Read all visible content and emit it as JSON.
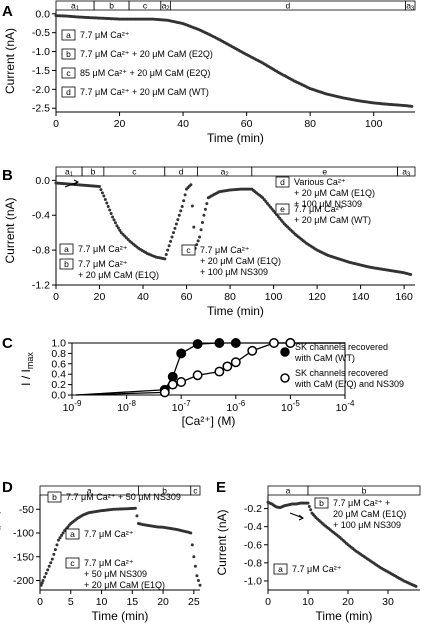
{
  "chart_data": [
    {
      "panel": "A",
      "type": "scatter",
      "xlabel": "Time (min)",
      "ylabel": "Current (nA)",
      "xlim": [
        0,
        113
      ],
      "ylim": [
        -2.6,
        0.1
      ],
      "xticks": [
        "0",
        "20",
        "40",
        "60",
        "80",
        "100"
      ],
      "yticks": [
        "0.0",
        "-0.5",
        "-1.0",
        "-1.5",
        "-2.0",
        "-2.5"
      ],
      "segments": [
        {
          "label": "a1",
          "main": "a",
          "sub": "1",
          "start": 0,
          "end": 12
        },
        {
          "label": "b",
          "main": "b",
          "sub": "",
          "start": 12,
          "end": 23
        },
        {
          "label": "c",
          "main": "c",
          "sub": "",
          "start": 23,
          "end": 33
        },
        {
          "label": "a2",
          "main": "a",
          "sub": "2",
          "start": 33,
          "end": 36
        },
        {
          "label": "d",
          "main": "d",
          "sub": "",
          "start": 36,
          "end": 110
        },
        {
          "label": "a3",
          "main": "a",
          "sub": "3",
          "start": 110,
          "end": 113
        }
      ],
      "legend": [
        {
          "key": "a",
          "text": "7.7 μM Ca²⁺"
        },
        {
          "key": "b",
          "text": "7.7 μM Ca²⁺ + 20 μM CaM (E2Q)"
        },
        {
          "key": "c",
          "text": "85 μM Ca²⁺ + 20 μM CaM (E2Q)"
        },
        {
          "key": "d",
          "text": "7.7 μM Ca²⁺ + 20 μM CaM (WT)"
        }
      ],
      "series": [
        {
          "x": [
            0,
            3,
            6,
            10,
            15,
            20,
            25,
            30,
            35,
            40,
            45,
            50,
            55,
            60,
            65,
            70,
            75,
            80,
            85,
            90,
            95,
            100,
            105,
            110,
            112
          ],
          "y": [
            -0.05,
            -0.06,
            -0.08,
            -0.1,
            -0.12,
            -0.14,
            -0.14,
            -0.14,
            -0.17,
            -0.26,
            -0.42,
            -0.62,
            -0.85,
            -1.08,
            -1.3,
            -1.55,
            -1.78,
            -1.98,
            -2.12,
            -2.22,
            -2.3,
            -2.36,
            -2.4,
            -2.43,
            -2.45
          ]
        }
      ]
    },
    {
      "panel": "B",
      "type": "scatter",
      "xlabel": "Time (min)",
      "ylabel": "Current (nA)",
      "xlim": [
        0,
        165
      ],
      "ylim": [
        -1.2,
        0.05
      ],
      "xticks": [
        "0",
        "20",
        "40",
        "60",
        "80",
        "100",
        "120",
        "140",
        "160"
      ],
      "yticks": [
        "0.0",
        "-0.4",
        "-0.8",
        "-1.2"
      ],
      "segments": [
        {
          "label": "a1",
          "main": "a",
          "sub": "1",
          "start": 0,
          "end": 12
        },
        {
          "label": "b",
          "main": "b",
          "sub": "",
          "start": 12,
          "end": 22
        },
        {
          "label": "c",
          "main": "c",
          "sub": "",
          "start": 22,
          "end": 50
        },
        {
          "label": "d",
          "main": "d",
          "sub": "",
          "start": 50,
          "end": 65
        },
        {
          "label": "a2",
          "main": "a",
          "sub": "2",
          "start": 65,
          "end": 90
        },
        {
          "label": "e",
          "main": "e",
          "sub": "",
          "start": 90,
          "end": 157
        },
        {
          "label": "a3",
          "main": "a",
          "sub": "3",
          "start": 157,
          "end": 165
        }
      ],
      "legend": [
        {
          "key": "d",
          "lines": [
            "Various Ca²⁺",
            "+ 20 μM CaM (E1Q)",
            "+ 100 μM NS309"
          ]
        },
        {
          "key": "e",
          "lines": [
            "7.7 μM Ca²⁺",
            "+ 20 μM CaM (WT)"
          ]
        },
        {
          "key": "a",
          "lines": [
            "7.7 μM Ca²⁺"
          ]
        },
        {
          "key": "b",
          "lines": [
            "7.7 μM Ca²⁺",
            "+ 20 μM CaM (E1Q)"
          ]
        },
        {
          "key": "c",
          "lines": [
            "7.7 μM Ca²⁺",
            "+ 20 μM CaM (E1Q)",
            "+ 100 μM NS309"
          ]
        }
      ],
      "series": [
        {
          "x": [
            0,
            5,
            10,
            15,
            20,
            22,
            24,
            26,
            28,
            30,
            34,
            38,
            42,
            46,
            50,
            52,
            54,
            56,
            58,
            60,
            62,
            64,
            66,
            68,
            70,
            75,
            80,
            85,
            90,
            95,
            100,
            105,
            110,
            115,
            120,
            125,
            130,
            135,
            140,
            145,
            150,
            155,
            160,
            163
          ],
          "y": [
            -0.03,
            -0.04,
            -0.05,
            -0.06,
            -0.07,
            -0.18,
            -0.3,
            -0.42,
            -0.52,
            -0.6,
            -0.7,
            -0.78,
            -0.84,
            -0.88,
            -0.9,
            -0.75,
            -0.6,
            -0.45,
            -0.3,
            -0.1,
            -0.05,
            -0.78,
            -0.65,
            -0.4,
            -0.2,
            -0.13,
            -0.11,
            -0.1,
            -0.1,
            -0.2,
            -0.35,
            -0.5,
            -0.62,
            -0.72,
            -0.8,
            -0.86,
            -0.9,
            -0.94,
            -0.97,
            -1.0,
            -1.02,
            -1.04,
            -1.06,
            -1.08
          ]
        }
      ]
    },
    {
      "panel": "C",
      "type": "scatter",
      "xlabel": "[Ca²⁺] (M)",
      "ylabel": "I / I",
      "ylabel_sub": "max",
      "xscale": "log",
      "xlim": [
        1e-09,
        0.0001
      ],
      "ylim": [
        0,
        1.0
      ],
      "xticks": [
        {
          "base": "10",
          "exp": "-9"
        },
        {
          "base": "10",
          "exp": "-8"
        },
        {
          "base": "10",
          "exp": "-7"
        },
        {
          "base": "10",
          "exp": "-6"
        },
        {
          "base": "10",
          "exp": "-5"
        },
        {
          "base": "10",
          "exp": "-4"
        }
      ],
      "yticks": [
        "0.0",
        "0.2",
        "0.4",
        "0.6",
        "0.8",
        "1.0"
      ],
      "legend": [
        {
          "marker": "filled",
          "lines": [
            "SK channels recovered",
            "with CaM (WT)"
          ]
        },
        {
          "marker": "open",
          "lines": [
            "SK channels recovered",
            "with CaM (E/Q) and NS309"
          ]
        }
      ],
      "series": [
        {
          "marker": "filled",
          "x": [
            5e-08,
            7e-08,
            1e-07,
            2e-07,
            5e-07,
            1e-06,
            1e-05
          ],
          "y": [
            0.1,
            0.35,
            0.8,
            0.98,
            1.0,
            1.0,
            1.0
          ]
        },
        {
          "marker": "open",
          "x": [
            5e-08,
            7e-08,
            1e-07,
            2e-07,
            5e-07,
            7e-07,
            1e-06,
            2e-06,
            5e-06,
            1e-05
          ],
          "y": [
            0.05,
            0.2,
            0.25,
            0.38,
            0.45,
            0.55,
            0.63,
            0.85,
            1.0,
            1.0
          ]
        }
      ]
    },
    {
      "panel": "D",
      "type": "scatter",
      "xlabel": "Time (min)",
      "ylabel": "Current (pA)",
      "xlim": [
        0,
        26
      ],
      "ylim": [
        -220,
        -20
      ],
      "xticks": [
        "0",
        "5",
        "10",
        "15",
        "20",
        "25"
      ],
      "yticks": [
        "-50",
        "-100",
        "-150",
        "-200"
      ],
      "segments": [
        {
          "label": "a",
          "main": "a",
          "sub": "",
          "start": 0,
          "end": 16
        },
        {
          "label": "b",
          "main": "b",
          "sub": "",
          "start": 16,
          "end": 24.5
        },
        {
          "label": "c",
          "main": "c",
          "sub": "",
          "start": 24.5,
          "end": 26
        }
      ],
      "legend": [
        {
          "key": "b",
          "lines": [
            "7.7 μM Ca²⁺ + 50 μM NS309"
          ]
        },
        {
          "key": "a",
          "lines": [
            "7.7 μM Ca²⁺"
          ]
        },
        {
          "key": "c",
          "lines": [
            "7.7 μM Ca²⁺",
            "+ 50 μM NS309",
            "+ 20 μM CaM (E1Q)"
          ]
        }
      ],
      "series": [
        {
          "x": [
            0.2,
            0.5,
            1,
            1.5,
            2,
            2.5,
            3,
            4,
            5,
            6,
            7,
            8,
            10,
            12,
            14,
            15.5,
            16,
            17,
            18,
            19,
            20,
            21,
            22,
            23,
            24,
            24.5,
            25,
            25.5,
            26
          ],
          "y": [
            -210,
            -200,
            -185,
            -170,
            -155,
            -135,
            -115,
            -95,
            -80,
            -70,
            -62,
            -57,
            -53,
            -50,
            -49,
            -48,
            -80,
            -83,
            -85,
            -87,
            -88,
            -90,
            -92,
            -95,
            -98,
            -100,
            -150,
            -190,
            -210
          ]
        }
      ]
    },
    {
      "panel": "E",
      "type": "scatter",
      "xlabel": "Time (min)",
      "ylabel": "Current (nA)",
      "xlim": [
        0,
        38
      ],
      "ylim": [
        -1.1,
        -0.05
      ],
      "xticks": [
        "0",
        "10",
        "20",
        "30"
      ],
      "yticks": [
        "-0.2",
        "-0.4",
        "-0.6",
        "-0.8",
        "-1.0"
      ],
      "segments": [
        {
          "label": "a",
          "main": "a",
          "sub": "",
          "start": 0,
          "end": 10
        },
        {
          "label": "b",
          "main": "b",
          "sub": "",
          "start": 10,
          "end": 38
        }
      ],
      "legend": [
        {
          "key": "b",
          "lines": [
            "7.7 μM Ca²⁺ +",
            "20 μM CaM (E1Q)",
            "+ 100 μM NS309"
          ]
        },
        {
          "key": "a",
          "lines": [
            "7.7 μM Ca²⁺"
          ]
        }
      ],
      "series": [
        {
          "x": [
            0,
            1,
            2,
            3,
            4,
            5,
            6,
            7,
            8,
            9,
            10,
            11,
            12,
            14,
            16,
            18,
            20,
            22,
            24,
            26,
            28,
            30,
            32,
            34,
            36,
            37
          ],
          "y": [
            -0.13,
            -0.15,
            -0.18,
            -0.19,
            -0.17,
            -0.16,
            -0.15,
            -0.15,
            -0.14,
            -0.14,
            -0.14,
            -0.25,
            -0.3,
            -0.38,
            -0.45,
            -0.52,
            -0.6,
            -0.67,
            -0.73,
            -0.79,
            -0.85,
            -0.9,
            -0.95,
            -1.0,
            -1.04,
            -1.06
          ]
        }
      ]
    }
  ]
}
